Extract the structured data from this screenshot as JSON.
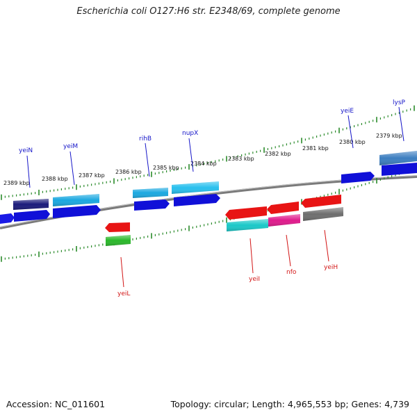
{
  "title": "Escherichia coli O127:H6 str. E2348/69, complete genome",
  "accession": "Accession: NC_011601",
  "summary": "Topology: circular; Length: 4,965,553 bp; Genes: 4,739",
  "colors": {
    "backbone": "#7a7a7a",
    "tick": "#2a8a2a",
    "fwd_label": "#1414c8",
    "rev_label": "#d21414"
  },
  "scale_labels": [
    "2389 kbp",
    "2388 kbp",
    "2387 kbp",
    "2386 kbp",
    "2385 kbp",
    "2384 kbp",
    "2383 kbp",
    "2382 kbp",
    "2381 kbp",
    "2380 kbp",
    "2379 kbp"
  ],
  "genes": [
    {
      "name": "yeiN",
      "strand": "forward"
    },
    {
      "name": "yeiM",
      "strand": "forward"
    },
    {
      "name": "rihB",
      "strand": "forward"
    },
    {
      "name": "nupX",
      "strand": "forward"
    },
    {
      "name": "yeiE",
      "strand": "forward"
    },
    {
      "name": "lysP",
      "strand": "forward"
    },
    {
      "name": "yeiL",
      "strand": "reverse"
    },
    {
      "name": "yeiI",
      "strand": "reverse"
    },
    {
      "name": "nfo",
      "strand": "reverse"
    },
    {
      "name": "yeiH",
      "strand": "reverse"
    }
  ]
}
